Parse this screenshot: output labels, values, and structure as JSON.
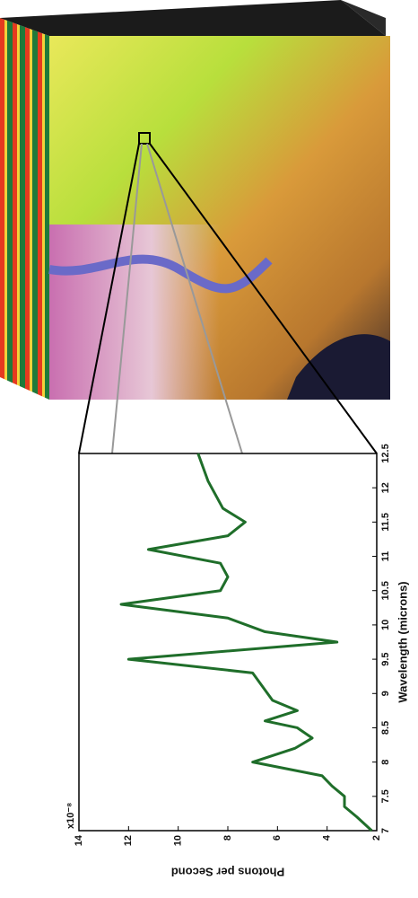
{
  "chart_data": {
    "type": "line",
    "x_label": "Wavelength (microns)",
    "y_label": "Photons per Second",
    "y_multiplier": "x10⁻⁸",
    "x": [
      7,
      7.2,
      7.35,
      7.5,
      7.65,
      7.8,
      8.0,
      8.2,
      8.35,
      8.5,
      8.6,
      8.75,
      8.9,
      9.1,
      9.3,
      9.5,
      9.75,
      9.9,
      10.1,
      10.3,
      10.5,
      10.7,
      10.9,
      11.1,
      11.3,
      11.5,
      11.7,
      11.9,
      12.1,
      12.3,
      12.5
    ],
    "series": [
      {
        "color": "#1f6e2a",
        "values": [
          2.2,
          2.8,
          3.3,
          3.3,
          3.8,
          4.2,
          7.0,
          5.3,
          4.6,
          5.2,
          6.5,
          5.2,
          6.2,
          6.6,
          7.0,
          12.0,
          3.6,
          6.5,
          8.0,
          12.3,
          8.3,
          8.0,
          8.3,
          11.2,
          8.0,
          7.3,
          8.2,
          8.5,
          8.8,
          9.0,
          9.2
        ]
      }
    ],
    "xlim": [
      7,
      12.5
    ],
    "xticks": [
      7,
      7.5,
      8,
      8.5,
      9,
      9.5,
      10,
      10.5,
      11,
      11.5,
      12,
      12.5
    ],
    "ylim": [
      2,
      14
    ],
    "yticks": [
      2,
      4,
      6,
      8,
      10,
      12,
      14
    ]
  }
}
